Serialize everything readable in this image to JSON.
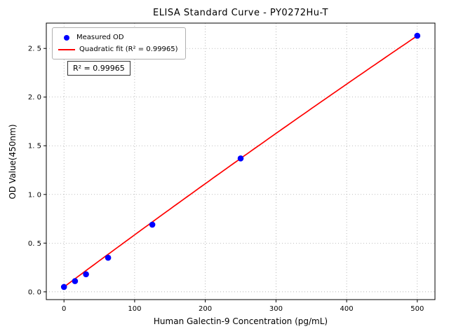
{
  "figure": {
    "title": "ELISA Standard Curve - PY0272Hu-T",
    "xlabel": "Human Galectin-9 Concentration (pg/mL)",
    "ylabel": "OD Value(450nm)",
    "annotation": "R² = 0.99965"
  },
  "legend": {
    "measured": "Measured OD",
    "fit": "Quadratic fit (R² = 0.99965)"
  },
  "chart_data": {
    "type": "scatter",
    "title": "ELISA Standard Curve - PY0272Hu-T",
    "xlabel": "Human Galectin-9 Concentration (pg/mL)",
    "ylabel": "OD Value(450nm)",
    "xlim": [
      -25,
      525
    ],
    "ylim": [
      -0.08,
      2.76
    ],
    "grid": true,
    "grid_style": "dotted",
    "legend_position": "upper left",
    "r_squared": 0.99965,
    "xticks": [
      {
        "v": 0,
        "label": "0"
      },
      {
        "v": 100,
        "label": "100"
      },
      {
        "v": 200,
        "label": "200"
      },
      {
        "v": 300,
        "label": "300"
      },
      {
        "v": 400,
        "label": "400"
      },
      {
        "v": 500,
        "label": "500"
      }
    ],
    "yticks": [
      {
        "v": 0.0,
        "label": "0. 0"
      },
      {
        "v": 0.5,
        "label": "0. 5"
      },
      {
        "v": 1.0,
        "label": "1. 0"
      },
      {
        "v": 1.5,
        "label": "1. 5"
      },
      {
        "v": 2.0,
        "label": "2. 0"
      },
      {
        "v": 2.5,
        "label": "2. 5"
      }
    ],
    "series": [
      {
        "name": "Measured OD",
        "type": "scatter",
        "color": "#0000ff",
        "x": [
          0,
          15.6,
          31.2,
          62.5,
          125,
          250,
          500
        ],
        "y": [
          0.05,
          0.11,
          0.18,
          0.35,
          0.69,
          1.37,
          2.63
        ]
      },
      {
        "name": "Quadratic fit (R² = 0.99965)",
        "type": "line",
        "color": "#ff0000",
        "fit_coefficients": {
          "a0": 0.05,
          "a1": 0.0054,
          "a2": -4.8e-07
        },
        "x_range": [
          0,
          500
        ]
      }
    ]
  }
}
